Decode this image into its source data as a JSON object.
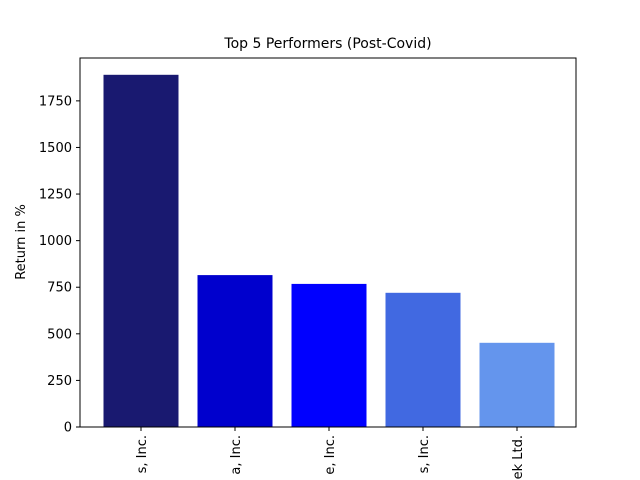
{
  "chart_data": {
    "type": "bar",
    "title": "Top 5 Performers (Post-Covid)",
    "xlabel": "",
    "ylabel": "Return in %",
    "categories": [
      "s, Inc.",
      "a, Inc.",
      "e, Inc.",
      "s, Inc.",
      "ek Ltd."
    ],
    "values": [
      1890,
      815,
      768,
      720,
      452
    ],
    "colors": [
      "#191970",
      "#0000cd",
      "#0000ff",
      "#4169e1",
      "#6495ed"
    ],
    "ylim": [
      0,
      1980
    ],
    "yticks": [
      0,
      250,
      500,
      750,
      1000,
      1250,
      1500,
      1750
    ],
    "grid": false,
    "legend": "none"
  }
}
